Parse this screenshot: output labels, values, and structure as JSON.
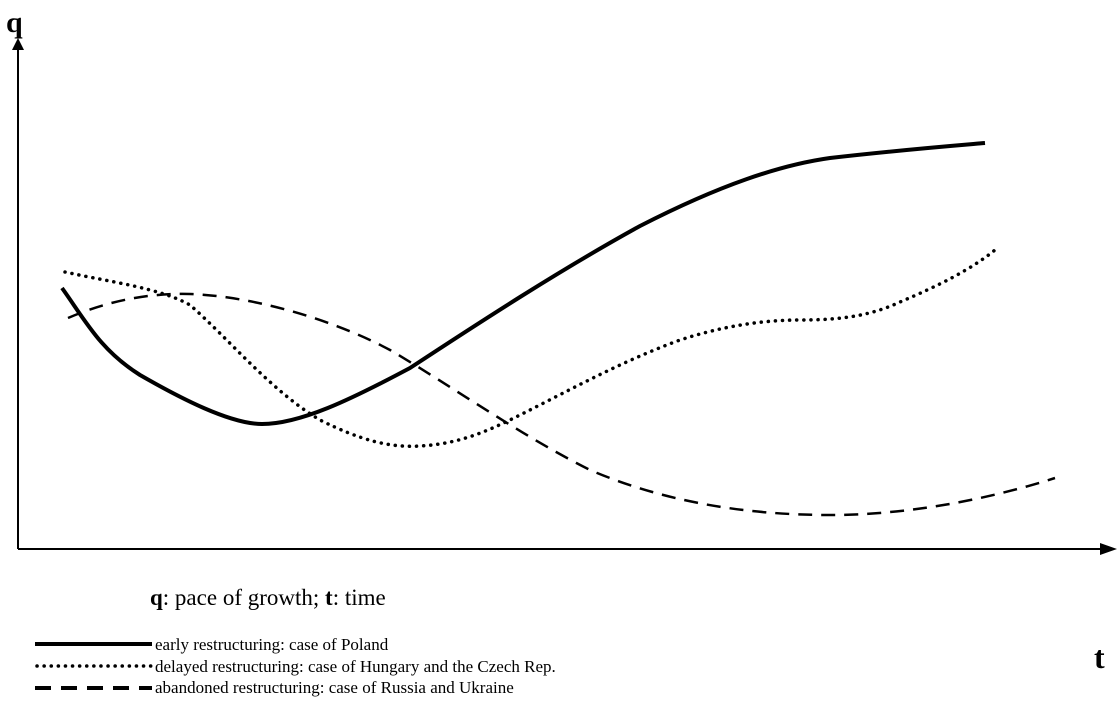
{
  "axes": {
    "y_label": "q",
    "x_label": "t"
  },
  "caption": {
    "q": "q",
    "q_text": ": pace of growth; ",
    "t": "t",
    "t_text": ": time"
  },
  "legend": [
    {
      "label": "early restructuring: case of Poland"
    },
    {
      "label": "delayed restructuring: case of Hungary and the Czech Rep."
    },
    {
      "label": "abandoned restructuring: case of Russia and  Ukraine"
    }
  ]
}
